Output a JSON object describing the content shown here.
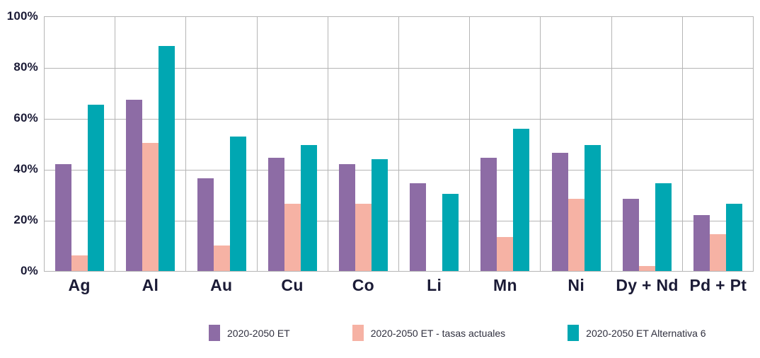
{
  "chart_data": {
    "type": "bar",
    "title": "",
    "xlabel": "",
    "ylabel": "",
    "categories": [
      "Ag",
      "Al",
      "Au",
      "Cu",
      "Co",
      "Li",
      "Mn",
      "Ni",
      "Dy + Nd",
      "Pd + Pt"
    ],
    "series": [
      {
        "name": "2020-2050 ET",
        "color": "#8d6ca5",
        "values": [
          42,
          67.5,
          36.5,
          44.5,
          42,
          34.5,
          44.5,
          46.5,
          28.5,
          22
        ]
      },
      {
        "name": "2020-2050 ET - tasas actuales",
        "color": "#f6b2a4",
        "values": [
          6,
          50.5,
          10,
          26.5,
          26.5,
          0,
          13.5,
          28.5,
          2,
          14.5
        ]
      },
      {
        "name": "2020-2050 ET Alternativa 6",
        "color": "#00a7b2",
        "values": [
          65.5,
          88.5,
          53,
          49.5,
          44,
          30.5,
          56,
          49.5,
          34.5,
          26.5
        ]
      }
    ],
    "ylim": [
      0,
      100
    ],
    "y_ticks": [
      "100%",
      "80%",
      "60%",
      "40%",
      "20%",
      "0%"
    ],
    "grid": true,
    "legend_position": "bottom"
  },
  "colors": {
    "grid": "#b5b5b5",
    "axis_label": "#1b1b36",
    "legend_text": "#30303f"
  }
}
